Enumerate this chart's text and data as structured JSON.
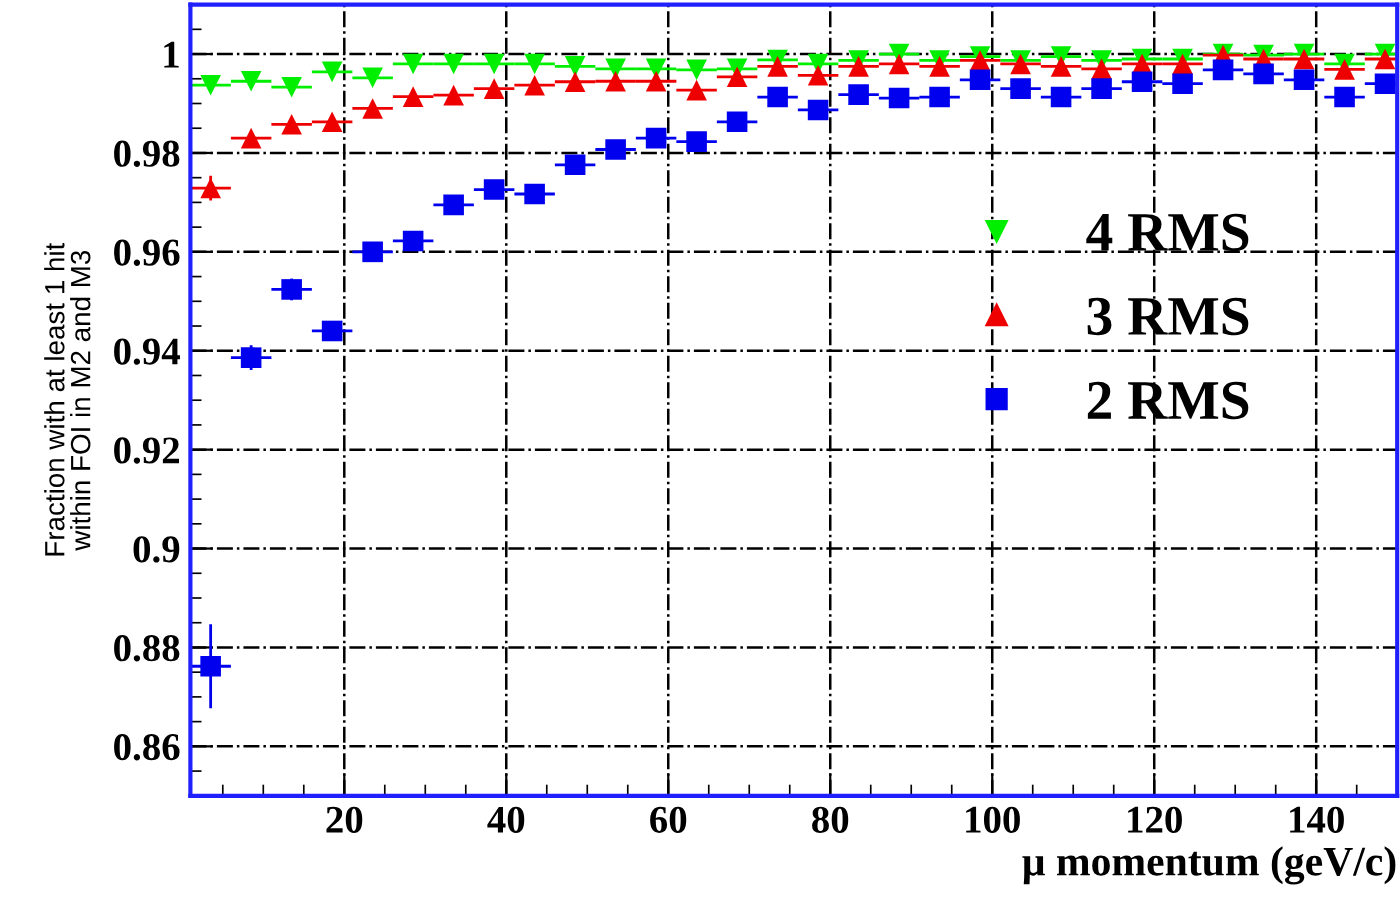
{
  "chart_data": {
    "type": "scatter",
    "xlabel": "μ momentum (geV/c)",
    "ylabel": "Fraction with at least 1 hit\nwithin FOI in M2 and M3",
    "x": [
      3.5,
      8.5,
      13.5,
      18.5,
      23.5,
      28.5,
      33.5,
      38.5,
      43.5,
      48.5,
      53.5,
      58.5,
      63.5,
      68.5,
      73.5,
      78.5,
      83.5,
      88.5,
      93.5,
      98.5,
      103.5,
      108.5,
      113.5,
      118.5,
      123.5,
      128.5,
      133.5,
      138.5,
      143.5,
      148.5
    ],
    "series": [
      {
        "name": "4 RMS",
        "color": "#00ee00",
        "marker": "triangle_down",
        "values": [
          0.9937,
          0.9945,
          0.9933,
          0.9964,
          0.9952,
          0.998,
          0.998,
          0.998,
          0.998,
          0.9975,
          0.997,
          0.997,
          0.9968,
          0.997,
          0.9988,
          0.998,
          0.9987,
          1.0,
          0.9987,
          0.9995,
          0.9987,
          0.9995,
          0.9987,
          0.999,
          0.999,
          1.0,
          0.9998,
          1.0,
          0.998,
          1.0
        ],
        "xerrors": [
          2.5,
          2.5,
          2.5,
          2.5,
          2.5,
          2.5,
          2.5,
          2.5,
          2.5,
          2.5,
          2.5,
          2.5,
          2.5,
          2.5,
          2.5,
          2.5,
          2.5,
          2.5,
          2.5,
          2.5,
          2.5,
          2.5,
          2.5,
          2.5,
          2.5,
          2.5,
          2.5,
          2.5,
          2.5,
          2.5
        ]
      },
      {
        "name": "3 RMS",
        "color": "#ee0000",
        "marker": "triangle",
        "values": [
          0.9729,
          0.983,
          0.9858,
          0.9863,
          0.989,
          0.9914,
          0.9917,
          0.993,
          0.9937,
          0.9944,
          0.9945,
          0.9945,
          0.9927,
          0.9954,
          0.9975,
          0.9957,
          0.9975,
          0.998,
          0.9975,
          0.9987,
          0.998,
          0.9975,
          0.997,
          0.998,
          0.998,
          0.9998,
          0.999,
          0.999,
          0.9969,
          0.999
        ],
        "errors": [
          0.0025,
          0.001,
          0.001,
          0.001,
          0.001,
          null,
          null,
          null,
          null,
          null,
          null,
          null,
          null,
          null,
          null,
          null,
          null,
          null,
          null,
          null,
          null,
          null,
          null,
          null,
          null,
          null,
          null,
          null,
          null,
          null
        ],
        "xerrors": [
          2.5,
          2.5,
          2.5,
          2.5,
          2.5,
          2.5,
          2.5,
          2.5,
          2.5,
          2.5,
          2.5,
          2.5,
          2.5,
          2.5,
          2.5,
          2.5,
          2.5,
          2.5,
          2.5,
          2.5,
          2.5,
          2.5,
          2.5,
          2.5,
          2.5,
          2.5,
          2.5,
          2.5,
          2.5,
          2.5
        ]
      },
      {
        "name": "2 RMS",
        "color": "#0000ee",
        "marker": "square",
        "values": [
          0.8762,
          0.9386,
          0.9524,
          0.944,
          0.96,
          0.9622,
          0.9695,
          0.9726,
          0.9717,
          0.9776,
          0.9807,
          0.983,
          0.9823,
          0.9863,
          0.9913,
          0.9887,
          0.9918,
          0.9911,
          0.9913,
          0.9948,
          0.993,
          0.9913,
          0.993,
          0.9944,
          0.994,
          0.9968,
          0.996,
          0.9948,
          0.9913,
          0.994
        ],
        "errors": [
          0.0085,
          0.0025,
          0.0022,
          0.002,
          0.0015,
          0.0015,
          0.0012,
          0.0012,
          0.0012,
          0.001,
          0.001,
          0.001,
          0.001,
          0.001,
          null,
          null,
          null,
          null,
          null,
          null,
          null,
          null,
          null,
          null,
          null,
          null,
          null,
          null,
          null,
          null
        ],
        "xerrors": [
          2.5,
          2.5,
          2.5,
          2.5,
          2.5,
          2.5,
          2.5,
          2.5,
          2.5,
          2.5,
          2.5,
          2.5,
          2.5,
          2.5,
          2.5,
          2.5,
          2.5,
          2.5,
          2.5,
          2.5,
          2.5,
          2.5,
          2.5,
          2.5,
          2.5,
          2.5,
          2.5,
          2.5,
          2.5,
          2.5
        ]
      }
    ],
    "xlim": [
      1,
      150
    ],
    "xticks": [
      20,
      40,
      60,
      80,
      100,
      120,
      140
    ],
    "ylim": [
      0.85,
      1.01
    ],
    "yticks": [
      0.86,
      0.88,
      0.9,
      0.92,
      0.94,
      0.96,
      0.98,
      1
    ],
    "grid": true,
    "legend": "right"
  }
}
